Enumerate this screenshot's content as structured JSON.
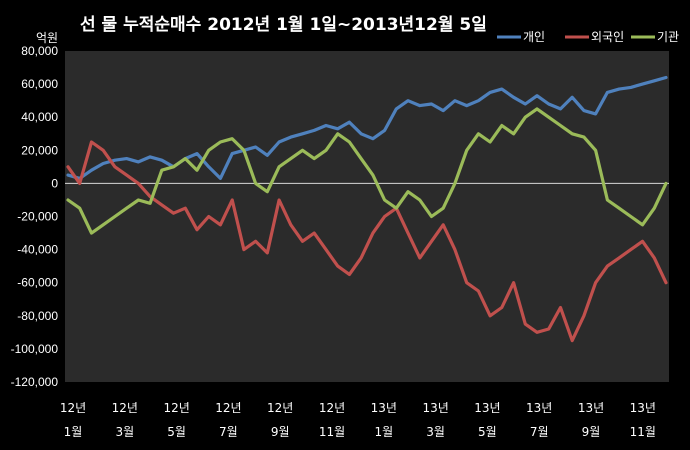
{
  "chart_data": {
    "type": "line",
    "title": "선 물 누적순매수 2012년 1월 1일~2013년12월 5일",
    "unit_label": "억원",
    "ylim": [
      -120000,
      80000
    ],
    "y_ticks": [
      "80,000",
      "60,000",
      "40,000",
      "20,000",
      "0",
      "-20,000",
      "-40,000",
      "-60,000",
      "-80,000",
      "-100,000",
      "-120,000"
    ],
    "x_ticks": [
      {
        "year": "12년",
        "month": "1월"
      },
      {
        "year": "12년",
        "month": "3월"
      },
      {
        "year": "12년",
        "month": "5월"
      },
      {
        "year": "12년",
        "month": "7월"
      },
      {
        "year": "12년",
        "month": "9월"
      },
      {
        "year": "12년",
        "month": "11월"
      },
      {
        "year": "13년",
        "month": "1월"
      },
      {
        "year": "13년",
        "month": "3월"
      },
      {
        "year": "13년",
        "month": "5월"
      },
      {
        "year": "13년",
        "month": "7월"
      },
      {
        "year": "13년",
        "month": "9월"
      },
      {
        "year": "13년",
        "month": "11월"
      }
    ],
    "grid": false,
    "legend_position": "top-right",
    "series": [
      {
        "name": "개인",
        "color": "#4f81bd",
        "values": [
          5000,
          3000,
          8000,
          12000,
          14000,
          15000,
          13000,
          16000,
          14000,
          10000,
          15000,
          18000,
          10000,
          3000,
          18000,
          20000,
          22000,
          17000,
          25000,
          28000,
          30000,
          32000,
          35000,
          33000,
          37000,
          30000,
          27000,
          32000,
          45000,
          50000,
          47000,
          48000,
          44000,
          50000,
          47000,
          50000,
          55000,
          57000,
          52000,
          48000,
          53000,
          48000,
          45000,
          52000,
          44000,
          42000,
          55000,
          57000,
          58000,
          60000,
          62000,
          64000
        ]
      },
      {
        "name": "외국인",
        "color": "#c0504d",
        "values": [
          10000,
          0,
          25000,
          20000,
          10000,
          5000,
          0,
          -8000,
          -13000,
          -18000,
          -15000,
          -28000,
          -20000,
          -25000,
          -10000,
          -40000,
          -35000,
          -42000,
          -10000,
          -25000,
          -35000,
          -30000,
          -40000,
          -50000,
          -55000,
          -45000,
          -30000,
          -20000,
          -15000,
          -30000,
          -45000,
          -35000,
          -25000,
          -40000,
          -60000,
          -65000,
          -80000,
          -75000,
          -60000,
          -85000,
          -90000,
          -88000,
          -75000,
          -95000,
          -80000,
          -60000,
          -50000,
          -45000,
          -40000,
          -35000,
          -45000,
          -60000
        ]
      },
      {
        "name": "기관",
        "color": "#9bbb59",
        "values": [
          -10000,
          -15000,
          -30000,
          -25000,
          -20000,
          -15000,
          -10000,
          -12000,
          8000,
          10000,
          15000,
          8000,
          20000,
          25000,
          27000,
          20000,
          0,
          -5000,
          10000,
          15000,
          20000,
          15000,
          20000,
          30000,
          25000,
          15000,
          5000,
          -10000,
          -15000,
          -5000,
          -10000,
          -20000,
          -15000,
          0,
          20000,
          30000,
          25000,
          35000,
          30000,
          40000,
          45000,
          40000,
          35000,
          30000,
          28000,
          20000,
          -10000,
          -15000,
          -20000,
          -25000,
          -15000,
          0
        ]
      }
    ]
  }
}
